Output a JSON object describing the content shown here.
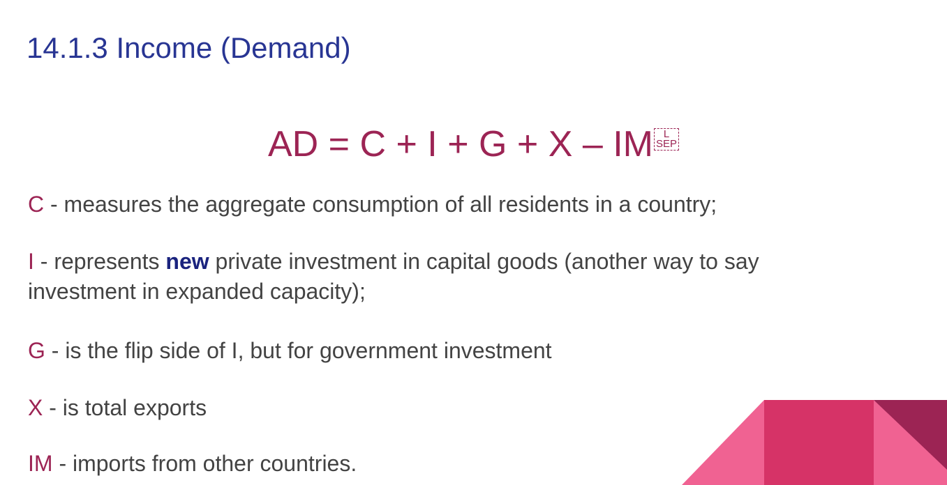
{
  "slide": {
    "title": "14.1.3 Income (Demand)",
    "formula": {
      "text": "AD = C + I + G + X – IM",
      "glyph_top": "L",
      "glyph_bottom": "SEP"
    },
    "definitions": [
      {
        "letter": "C",
        "text": " - measures the aggregate consumption of all residents in a country;"
      },
      {
        "letter": "I",
        "text_before": " - represents ",
        "emphasis": "new",
        "text_after": " private investment in capital goods (another way to say",
        "text_line2": "investment in expanded capacity);"
      },
      {
        "letter": "G",
        "text": " - is the flip side of I, but for government investment"
      },
      {
        "letter": "X",
        "text": " - is total exports"
      },
      {
        "letter": "IM",
        "text": " - imports from other countries."
      }
    ]
  },
  "colors": {
    "title": "#283593",
    "accent": "#9c2454",
    "body_text": "#434343",
    "emphasis": "#1a237e",
    "decor_light": "#f06292",
    "decor_mid": "#d63367",
    "decor_dark": "#9c2454"
  }
}
